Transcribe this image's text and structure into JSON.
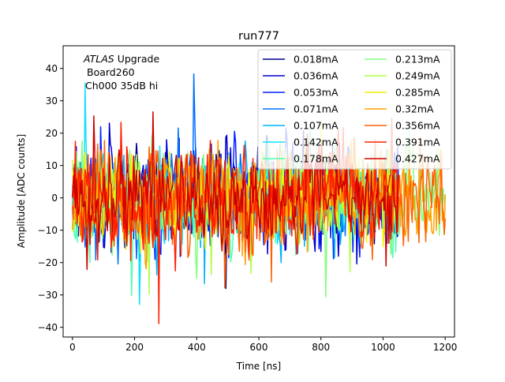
{
  "chart_data": {
    "type": "line",
    "title": "run777",
    "xlabel": "Time [ns]",
    "ylabel": "Amplitude [ADC counts]",
    "xlim": [
      -30,
      1230
    ],
    "ylim": [
      -43,
      47
    ],
    "xticks": [
      0,
      200,
      400,
      600,
      800,
      1000,
      1200
    ],
    "yticks": [
      -40,
      -30,
      -20,
      -10,
      0,
      10,
      20,
      30,
      40
    ],
    "grid": false,
    "legend": {
      "placement": "top-right",
      "columns": 2
    },
    "annotation": {
      "italic_part": "ATLAS",
      "line1_rest": " Upgrade",
      "line2": "Board260",
      "line3": "Ch000 35dB hi"
    },
    "series": [
      {
        "name": "0.018mA",
        "color": "#00008f",
        "x_end": 1050,
        "amp": 12,
        "seed": 11
      },
      {
        "name": "0.036mA",
        "color": "#0000d0",
        "x_end": 1050,
        "amp": 12,
        "seed": 23
      },
      {
        "name": "0.053mA",
        "color": "#0020ff",
        "x_end": 1050,
        "amp": 12,
        "seed": 37
      },
      {
        "name": "0.071mA",
        "color": "#0070ff",
        "x_end": 1050,
        "amp": 12,
        "seed": 41
      },
      {
        "name": "0.107mA",
        "color": "#00b0ff",
        "x_end": 1050,
        "amp": 11,
        "seed": 53
      },
      {
        "name": "0.142mA",
        "color": "#10e0ff",
        "x_end": 1050,
        "amp": 11,
        "seed": 67
      },
      {
        "name": "0.178mA",
        "color": "#50ffb0",
        "x_end": 1050,
        "amp": 12,
        "seed": 71
      },
      {
        "name": "0.213mA",
        "color": "#80ff80",
        "x_end": 1200,
        "amp": 12,
        "seed": 83
      },
      {
        "name": "0.249mA",
        "color": "#b0ff40",
        "x_end": 1050,
        "amp": 11,
        "seed": 97
      },
      {
        "name": "0.285mA",
        "color": "#f0f000",
        "x_end": 1050,
        "amp": 11,
        "seed": 103
      },
      {
        "name": "0.32mA",
        "color": "#ffa000",
        "x_end": 1200,
        "amp": 12,
        "seed": 113
      },
      {
        "name": "0.356mA",
        "color": "#ff6000",
        "x_end": 1200,
        "amp": 13,
        "seed": 127
      },
      {
        "name": "0.391mA",
        "color": "#ff2000",
        "x_end": 1050,
        "amp": 13,
        "seed": 131
      },
      {
        "name": "0.427mA",
        "color": "#d00000",
        "x_end": 1050,
        "amp": 12,
        "seed": 149
      }
    ],
    "sample_step_ns": 3.125,
    "notes": "Dense noise waveforms roughly centred on 0, mostly within about -25 to 25 ADC counts, with spikes reaching about +43 and -39."
  }
}
